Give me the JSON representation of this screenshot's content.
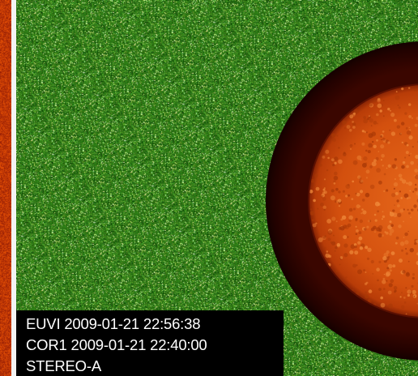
{
  "caption": {
    "euvi": "EUVI 2009-01-21 22:56:38",
    "cor1": "COR1 2009-01-21 22:40:00",
    "spacecraft": "STEREO-A"
  },
  "colors": {
    "coronagraph_background": "#2f7a16",
    "occulter_disk": "#2a0300",
    "solar_disk": "#d3500e",
    "left_strip": "#b52a06",
    "divider": "#f3f3f3",
    "caption_text": "#ffffff",
    "caption_background": "#000000"
  }
}
